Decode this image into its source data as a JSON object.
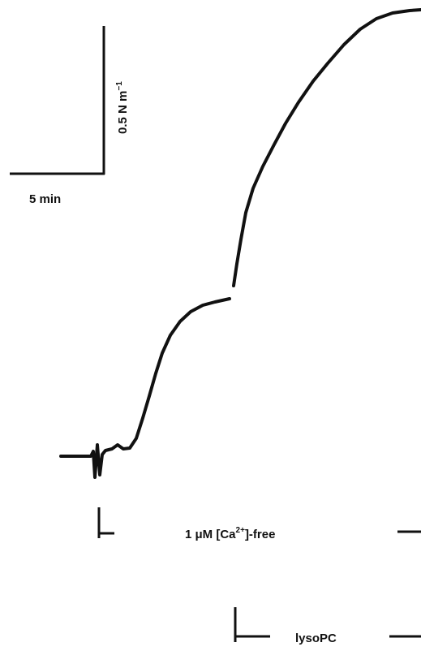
{
  "scale": {
    "force_label": "0.5 N m",
    "force_exponent": "−1",
    "time_label": "5 min"
  },
  "bars": [
    {
      "label_parts": [
        "1 μM [Ca",
        "2+",
        "]-free"
      ]
    },
    {
      "label_parts": [
        "lysoPC"
      ]
    }
  ]
}
